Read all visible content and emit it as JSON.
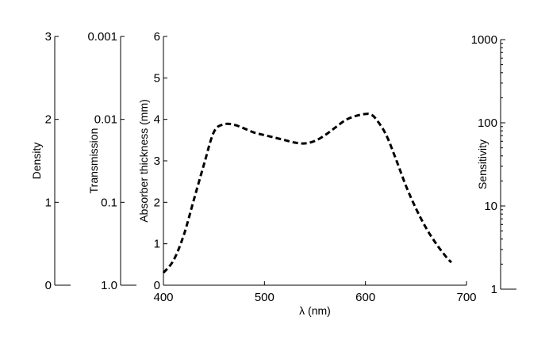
{
  "chart_data": {
    "type": "line",
    "title": "",
    "x_axis": {
      "label": "λ  (nm)",
      "range": [
        400,
        700
      ],
      "ticks": [
        400,
        500,
        600,
        700
      ]
    },
    "y_axis_main": {
      "label": "Absorber thickness  (mm)",
      "range": [
        0,
        6
      ],
      "ticks": [
        0,
        1,
        2,
        3,
        4,
        5,
        6
      ]
    },
    "y_axis_density": {
      "label": "Density",
      "range": [
        0,
        3
      ],
      "ticks": [
        0,
        1,
        2,
        3
      ]
    },
    "y_axis_transmission": {
      "label": "Transmission",
      "scale": "log",
      "inverted": true,
      "ticks": [
        "1.0",
        "0.1",
        "0.01",
        "0.001"
      ]
    },
    "y_axis_sensitivity": {
      "label": "Sensitivity",
      "scale": "log",
      "ticks": [
        "1",
        "10",
        "100",
        "1000"
      ]
    },
    "series": [
      {
        "style": "dashed",
        "x": [
          400,
          410,
          420,
          430,
          440,
          450,
          460,
          470,
          480,
          490,
          500,
          510,
          520,
          530,
          540,
          550,
          560,
          570,
          580,
          590,
          600,
          605,
          610,
          620,
          630,
          640,
          650,
          660,
          670,
          680,
          685
        ],
        "y": [
          0.3,
          0.6,
          1.2,
          2.05,
          2.9,
          3.7,
          3.88,
          3.87,
          3.78,
          3.68,
          3.62,
          3.56,
          3.5,
          3.44,
          3.42,
          3.48,
          3.62,
          3.8,
          3.98,
          4.08,
          4.13,
          4.12,
          4.02,
          3.65,
          3.05,
          2.4,
          1.85,
          1.38,
          1.0,
          0.68,
          0.55
        ]
      }
    ],
    "grid": false,
    "legend": "none"
  }
}
